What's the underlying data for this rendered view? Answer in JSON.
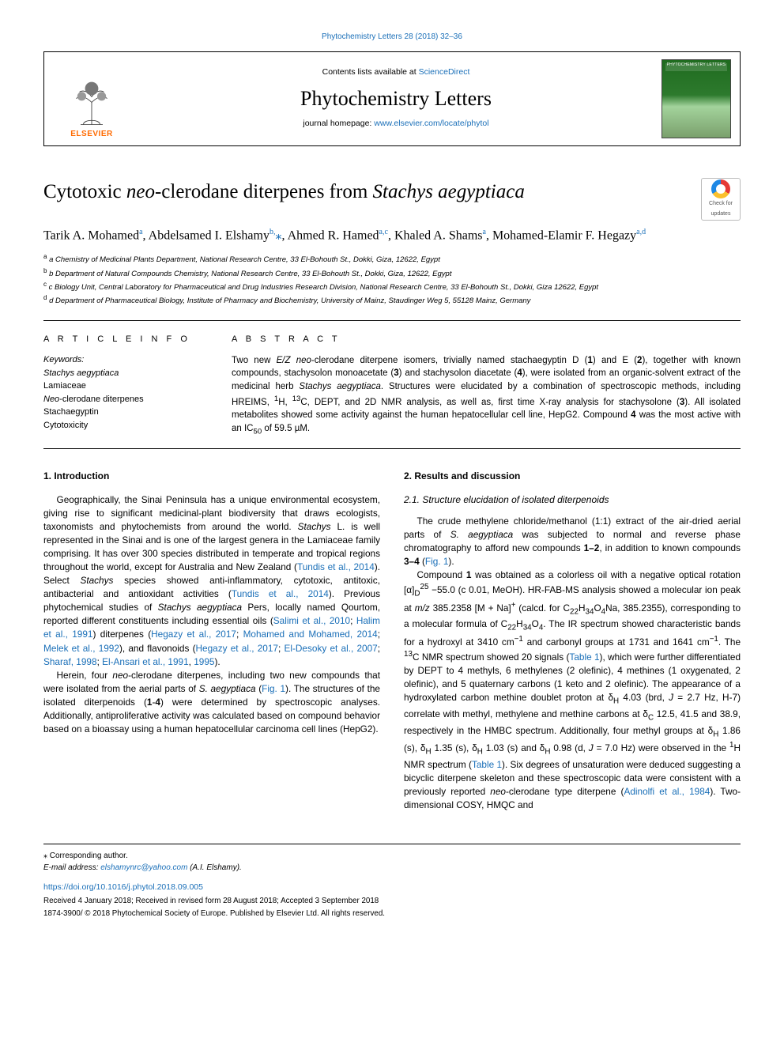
{
  "top_citation": "Phytochemistry Letters 28 (2018) 32–36",
  "header": {
    "publisher_name": "ELSEVIER",
    "contents_prefix": "Contents lists available at ",
    "contents_link": "ScienceDirect",
    "journal_name": "Phytochemistry Letters",
    "homepage_prefix": "journal homepage: ",
    "homepage_link": "www.elsevier.com/locate/phytol",
    "cover_label": "PHYTOCHEMISTRY LETTERS"
  },
  "updates_badge": {
    "line1": "Check for",
    "line2": "updates"
  },
  "title_html": "Cytotoxic <i>neo</i>-clerodane diterpenes from <i>Stachys aegyptiaca</i>",
  "authors_html": "Tarik A. Mohamed<sup>a</sup>, Abdelsamed I. Elshamy<sup>b,</sup><span class='star'>⁎</span>, Ahmed R. Hamed<sup>a,c</sup>, Khaled A. Shams<sup>a</sup>, Mohamed-Elamir F. Hegazy<sup>a,d</sup>",
  "affiliations": [
    "a Chemistry of Medicinal Plants Department, National Research Centre, 33 El-Bohouth St., Dokki, Giza, 12622, Egypt",
    "b Department of Natural Compounds Chemistry, National Research Centre, 33 El-Bohouth St., Dokki, Giza, 12622, Egypt",
    "c Biology Unit, Central Laboratory for Pharmaceutical and Drug Industries Research Division, National Research Centre, 33 El-Bohouth St., Dokki, Giza 12622, Egypt",
    "d Department of Pharmaceutical Biology, Institute of Pharmacy and Biochemistry, University of Mainz, Staudinger Weg 5, 55128 Mainz, Germany"
  ],
  "info": {
    "head": "A R T I C L E  I N F O",
    "kw_label": "Keywords:",
    "keywords": [
      "Stachys aegyptiaca",
      "Lamiaceae",
      "Neo-clerodane diterpenes",
      "Stachaegyptin",
      "Cytotoxicity"
    ]
  },
  "abstract": {
    "head": "A B S T R A C T",
    "text_html": "Two new <i>E/Z neo</i>-clerodane diterpene isomers, trivially named stachaegyptin D (<b>1</b>) and E (<b>2</b>), together with known compounds, stachysolon monoacetate (<b>3</b>) and stachysolon diacetate (<b>4</b>), were isolated from an organic-solvent extract of the medicinal herb <i>Stachys aegyptiaca</i>. Structures were elucidated by a combination of spectroscopic methods, including HREIMS, <sup>1</sup>H, <sup>13</sup>C, DEPT, and 2D NMR analysis, as well as, first time X-ray analysis for stachysolone (<b>3</b>). All isolated metabolites showed some activity against the human hepatocellular cell line, HepG2. Compound <b>4</b> was the most active with an IC<sub>50</sub> of 59.5 µM."
  },
  "sections": {
    "s1_head": "1. Introduction",
    "s1_p1_html": "Geographically, the Sinai Peninsula has a unique environmental ecosystem, giving rise to significant medicinal-plant biodiversity that draws ecologists, taxonomists and phytochemists from around the world. <i>Stachys</i> L. is well represented in the Sinai and is one of the largest genera in the Lamiaceae family comprising. It has over 300 species distributed in temperate and tropical regions throughout the world, except for Australia and New Zealand (<a class='cit'>Tundis et al., 2014</a>). Select <i>Stachys</i> species showed anti-inflammatory, cytotoxic, antitoxic, antibacterial and antioxidant activities (<a class='cit'>Tundis et al., 2014</a>). Previous phytochemical studies of <i>Stachys aegyptiaca</i> Pers, locally named Qourtom, reported different constituents including essential oils (<a class='cit'>Salimi et al., 2010</a>; <a class='cit'>Halim et al., 1991</a>) diterpenes (<a class='cit'>Hegazy et al., 2017</a>; <a class='cit'>Mohamed and Mohamed, 2014</a>; <a class='cit'>Melek et al., 1992</a>), and flavonoids (<a class='cit'>Hegazy et al., 2017</a>; <a class='cit'>El-Desoky et al., 2007</a>; <a class='cit'>Sharaf, 1998</a>; <a class='cit'>El-Ansari et al., 1991</a>, <a class='cit'>1995</a>).",
    "s1_p2_html": "Herein, four <i>neo</i>-clerodane diterpenes, including two new compounds that were isolated from the aerial parts of <i>S. aegyptiaca</i> (<a class='cit'>Fig. 1</a>). The structures of the isolated diterpenoids (<b>1</b>-<b>4</b>) were determined by spectroscopic analyses. Additionally, antiproliferative activity was calculated based on compound behavior based on a bioassay using a human hepatocellular carcinoma cell lines (HepG2).",
    "s2_head": "2. Results and discussion",
    "s21_head": "2.1. Structure elucidation of isolated diterpenoids",
    "s21_p1_html": "The crude methylene chloride/methanol (1:1) extract of the air-dried aerial parts of <i>S. aegyptiaca</i> was subjected to normal and reverse phase chromatography to afford new compounds <b>1–2</b>, in addition to known compounds <b>3–4</b> (<a class='cit'>Fig. 1</a>).",
    "s21_p2_html": "Compound <b>1</b> was obtained as a colorless oil with a negative optical rotation [α]<sub>D</sub><sup>25</sup> −55.0 (c 0.01, MeOH). HR-FAB-MS analysis showed a molecular ion peak at <i>m/z</i> 385.2358 [M + Na]<sup>+</sup> (calcd. for C<sub>22</sub>H<sub>34</sub>O<sub>4</sub>Na, 385.2355), corresponding to a molecular formula of C<sub>22</sub>H<sub>34</sub>O<sub>4</sub>. The IR spectrum showed characteristic bands for a hydroxyl at 3410 cm<sup>−1</sup> and carbonyl groups at 1731 and 1641 cm<sup>−1</sup>. The <sup>13</sup>C NMR spectrum showed 20 signals (<a class='cit'>Table 1</a>), which were further differentiated by DEPT to 4 methyls, 6 methylenes (2 olefinic), 4 methines (1 oxygenated, 2 olefinic), and 5 quaternary carbons (1 keto and 2 olefinic). The appearance of a hydroxylated carbon methine doublet proton at δ<sub>H</sub> 4.03 (brd, <i>J</i> = 2.7 Hz, H-7) correlate with methyl, methylene and methine carbons at δ<sub>C</sub> 12.5, 41.5 and 38.9, respectively in the HMBC spectrum. Additionally, four methyl groups at δ<sub>H</sub> 1.86 (s), δ<sub>H</sub> 1.35 (s), δ<sub>H</sub> 1.03 (s) and δ<sub>H</sub> 0.98 (d, <i>J</i> = 7.0 Hz) were observed in the <sup>1</sup>H NMR spectrum (<a class='cit'>Table 1</a>). Six degrees of unsaturation were deduced suggesting a bicyclic diterpene skeleton and these spectroscopic data were consistent with a previously reported <i>neo</i>-clerodane type diterpene (<a class='cit'>Adinolfi et al., 1984</a>). Two-dimensional COSY, HMQC and"
  },
  "footer": {
    "corr_label": "⁎ Corresponding author.",
    "email_label": "E-mail address: ",
    "email": "elshamynrc@yahoo.com",
    "email_person": " (A.I. Elshamy).",
    "doi": "https://doi.org/10.1016/j.phytol.2018.09.005",
    "dates": "Received 4 January 2018; Received in revised form 28 August 2018; Accepted 3 September 2018",
    "copyright": "1874-3900/ © 2018 Phytochemical Society of Europe. Published by Elsevier Ltd. All rights reserved."
  },
  "colors": {
    "link": "#1a6fb8",
    "elsevier_orange": "#ff6a00",
    "rule": "#000000"
  }
}
